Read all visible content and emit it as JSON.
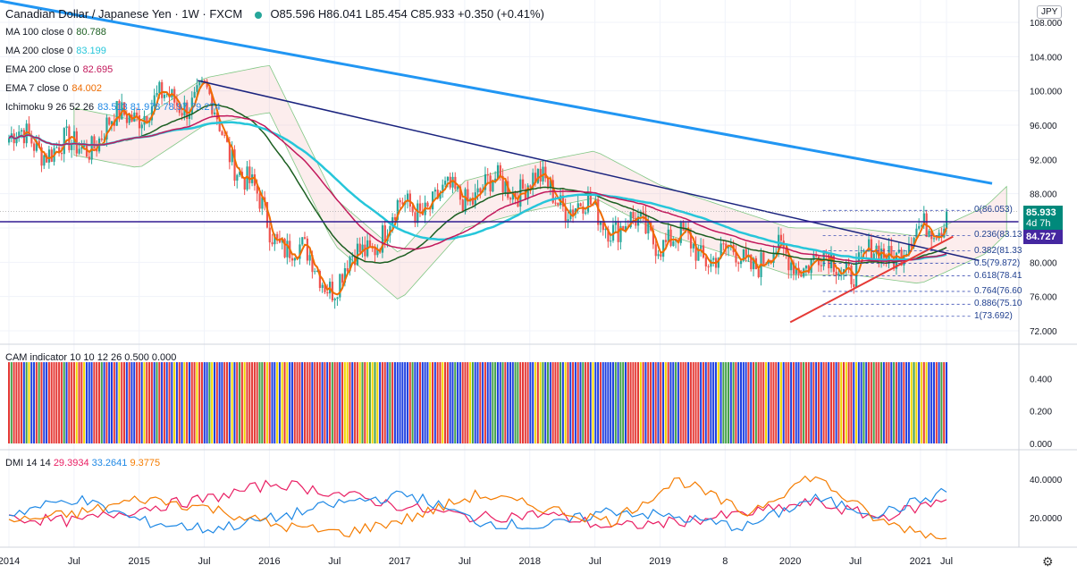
{
  "header": {
    "symbol": "Canadian Dollar / Japanese Yen · 1W · FXCM",
    "ohlc": "O85.596 H86.041 L85.454 C85.933 +0.350 (+0.41%)",
    "currency_button": "JPY"
  },
  "indicators": [
    {
      "label": "MA 100 close 0",
      "value": "80.788",
      "color": "#1b5e20"
    },
    {
      "label": "MA 200 close 0",
      "value": "83.199",
      "color": "#26c6da"
    },
    {
      "label": "EMA 200 close 0",
      "value": "82.695",
      "color": "#c2185b"
    },
    {
      "label": "EMA 7 close 0",
      "value": "84.002",
      "color": "#ef6c00"
    },
    {
      "label": "Ichimoku 9 26 52 26",
      "value": "83.513 81.978 78.97 79.274",
      "color": "#1e88e5"
    }
  ],
  "price_badges": {
    "current": "85.933",
    "countdown": "4d 7h",
    "level": "84.727"
  },
  "fib_levels": [
    {
      "label": "0(86.053)"
    },
    {
      "label": "0.236(83.13"
    },
    {
      "label": "0.382(81.33"
    },
    {
      "label": "0.5(79.872)"
    },
    {
      "label": "0.618(78.41"
    },
    {
      "label": "0.764(76.60"
    },
    {
      "label": "0.886(75.10"
    },
    {
      "label": "1(73.692)"
    }
  ],
  "cam_label": "CAM indicator 10 10 12 26 0.500 0.000",
  "dmi": {
    "label": "DMI 14 14",
    "plus": "29.3934",
    "minus": "33.2641",
    "adx": "9.3775"
  },
  "colors": {
    "blue_trend": "#2196f3",
    "navy_trend": "#1a237e",
    "red_support": "#e53935",
    "hline": "#311b92",
    "badge_price": "#00897b",
    "badge_level": "#4527a0"
  },
  "chart_data": [
    {
      "type": "candlestick",
      "title": "Canadian Dollar / Japanese Yen · 1W · FXCM",
      "ylim": [
        70.5,
        109
      ],
      "yticks": [
        "108.000",
        "104.000",
        "100.000",
        "96.000",
        "92.000",
        "88.000",
        "84.000",
        "80.000",
        "76.000",
        "72.000"
      ],
      "xticks": [
        "2014",
        "Jul",
        "2015",
        "Jul",
        "2016",
        "Jul",
        "2017",
        "Jul",
        "2018",
        "Jul",
        "2019",
        "8",
        "2020",
        "Jul",
        "2021",
        "Jul"
      ],
      "x": [
        2014.0,
        2014.5,
        2015.0,
        2015.5,
        2016.0,
        2016.5,
        2017.0,
        2017.5,
        2018.0,
        2018.5,
        2019.0,
        2019.5,
        2020.0,
        2020.5,
        2021.0,
        2021.2
      ],
      "close": [
        94.5,
        93.0,
        98.0,
        99.5,
        84.0,
        77.5,
        86.0,
        88.0,
        89.5,
        85.5,
        83.0,
        80.5,
        80.5,
        79.5,
        83.0,
        85.9
      ],
      "last": {
        "open": 85.596,
        "high": 86.041,
        "low": 85.454,
        "close": 85.933
      }
    },
    {
      "type": "bar",
      "title": "CAM indicator 10 10 12 26 0.500 0.000",
      "ylim": [
        0,
        0.55
      ],
      "yticks": [
        "0.400",
        "0.200",
        "0.000"
      ],
      "bar_value": 0.5,
      "series_colors": [
        "#e53935",
        "#1e3fe0",
        "#f2d600",
        "#43a047"
      ]
    },
    {
      "type": "line",
      "title": "DMI 14 14",
      "ylim": [
        8,
        52
      ],
      "yticks": [
        "40.0000",
        "20.0000"
      ],
      "series": [
        {
          "name": "29.3934",
          "color": "#e91e63",
          "values": [
            20,
            18,
            25,
            30,
            38,
            32,
            25,
            20,
            22,
            15,
            18,
            22,
            28,
            20,
            29.4
          ]
        },
        {
          "name": "33.2641",
          "color": "#1e88e5",
          "values": [
            22,
            30,
            18,
            14,
            20,
            28,
            32,
            18,
            15,
            24,
            20,
            15,
            30,
            22,
            33.3
          ]
        },
        {
          "name": "9.3775",
          "color": "#f57c00",
          "values": [
            18,
            22,
            30,
            25,
            16,
            12,
            20,
            32,
            25,
            18,
            40,
            22,
            42,
            18,
            9.4
          ]
        }
      ]
    }
  ]
}
